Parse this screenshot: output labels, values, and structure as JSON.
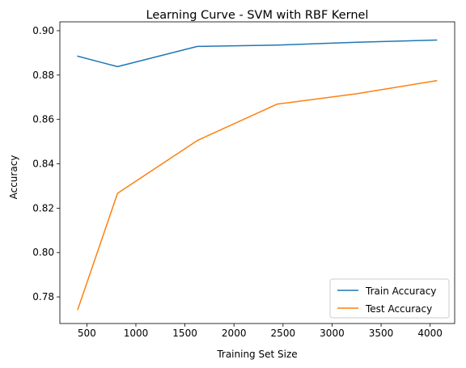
{
  "chart_data": {
    "type": "line",
    "title": "Learning Curve - SVM with RBF Kernel",
    "xlabel": "Training Set Size",
    "ylabel": "Accuracy",
    "xlim": [
      225,
      4250
    ],
    "ylim": [
      0.768,
      0.904
    ],
    "xticks": [
      500,
      1000,
      1500,
      2000,
      2500,
      3000,
      3500,
      4000
    ],
    "xtick_labels": [
      "500",
      "1000",
      "1500",
      "2000",
      "2500",
      "3000",
      "3500",
      "4000"
    ],
    "yticks": [
      0.78,
      0.8,
      0.82,
      0.84,
      0.86,
      0.88,
      0.9
    ],
    "ytick_labels": [
      "0.78",
      "0.80",
      "0.82",
      "0.84",
      "0.86",
      "0.88",
      "0.90"
    ],
    "grid": false,
    "legend_position": "lower-right",
    "x": [
      407,
      813,
      1626,
      2439,
      3252,
      4065
    ],
    "series": [
      {
        "name": "Train Accuracy",
        "color": "#1f77b4",
        "values": [
          0.8885,
          0.8838,
          0.8929,
          0.8935,
          0.8948,
          0.8958
        ]
      },
      {
        "name": "Test Accuracy",
        "color": "#ff7f0e",
        "values": [
          0.7743,
          0.8267,
          0.8505,
          0.8669,
          0.8716,
          0.8775
        ]
      }
    ]
  }
}
